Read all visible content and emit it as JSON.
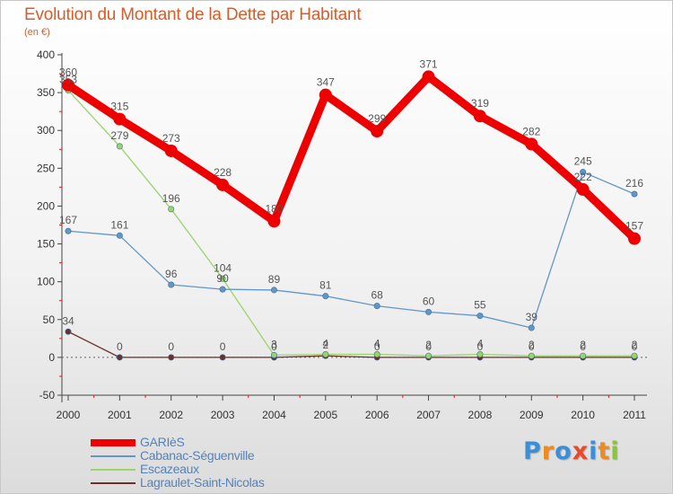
{
  "header": {
    "title": "Evolution du Montant de la Dette par Habitant",
    "subtitle": "(en €)"
  },
  "colors": {
    "title": "#d95b28",
    "axis_text": "#333333",
    "label_text": "#555555",
    "tick_red": "#cc2222",
    "legend_text": "#5582b9"
  },
  "chart_data": {
    "type": "line",
    "title": "Evolution du Montant de la Dette par Habitant",
    "ylabel": "(en €)",
    "xlabel": "",
    "categories": [
      "2000",
      "2001",
      "2002",
      "2003",
      "2004",
      "2005",
      "2006",
      "2007",
      "2008",
      "2009",
      "2010",
      "2011"
    ],
    "ylim": [
      -50,
      400
    ],
    "yticks": [
      -50,
      0,
      50,
      100,
      150,
      200,
      250,
      300,
      350,
      400
    ],
    "grid": false,
    "legend_position": "bottom-left",
    "series": [
      {
        "name": "GARIèS",
        "color": "#ee0000",
        "values": [
          360,
          315,
          273,
          228,
          180,
          347,
          299,
          371,
          319,
          282,
          222,
          157
        ],
        "labels": [
          "360",
          "315",
          "273",
          "228",
          "180",
          "347",
          "299",
          "371",
          "319",
          "282",
          "222",
          "157"
        ]
      },
      {
        "name": "Cabanac-Séguenville",
        "color": "#6196c9",
        "values": [
          167,
          161,
          96,
          90,
          89,
          81,
          68,
          60,
          55,
          39,
          245,
          216
        ],
        "labels": [
          "167",
          "161",
          "96",
          "90",
          "89",
          "81",
          "68",
          "60",
          "55",
          "39",
          "245",
          "216"
        ]
      },
      {
        "name": "Escazeaux",
        "color": "#9ad46a",
        "values": [
          353,
          279,
          196,
          104,
          3,
          4,
          4,
          2,
          4,
          2,
          2,
          2
        ],
        "labels": [
          "353",
          "279",
          "196",
          "104",
          "3",
          "4",
          "4",
          "2",
          "4",
          "2",
          "2",
          "2"
        ]
      },
      {
        "name": "Lagraulet-Saint-Nicolas",
        "color": "#6b2f2f",
        "values": [
          34,
          0,
          0,
          0,
          0,
          2,
          0,
          0,
          0,
          0,
          0,
          0
        ],
        "labels": [
          "34",
          "0",
          "0",
          "0",
          "0",
          "2",
          "0",
          "0",
          "0",
          "0",
          "0",
          "0"
        ]
      }
    ]
  },
  "legend": {
    "items": [
      {
        "label": "GARIèS",
        "color": "#ee0000"
      },
      {
        "label": "Cabanac-Séguenville",
        "color": "#6196c9"
      },
      {
        "label": "Escazeaux",
        "color": "#9ad46a"
      },
      {
        "label": "Lagraulet-Saint-Nicolas",
        "color": "#6b2f2f"
      }
    ]
  },
  "logo": {
    "text": "Proxiti",
    "letters": [
      {
        "ch": "P",
        "color": "#3c8fd6"
      },
      {
        "ch": "r",
        "color": "#f08a1c"
      },
      {
        "ch": "o",
        "color": "#3c8fd6"
      },
      {
        "ch": "x",
        "color": "#e84a2a"
      },
      {
        "ch": "i",
        "color": "#3c8fd6"
      },
      {
        "ch": "t",
        "color": "#f08a1c"
      },
      {
        "ch": "i",
        "color": "#8cc43c"
      }
    ]
  }
}
